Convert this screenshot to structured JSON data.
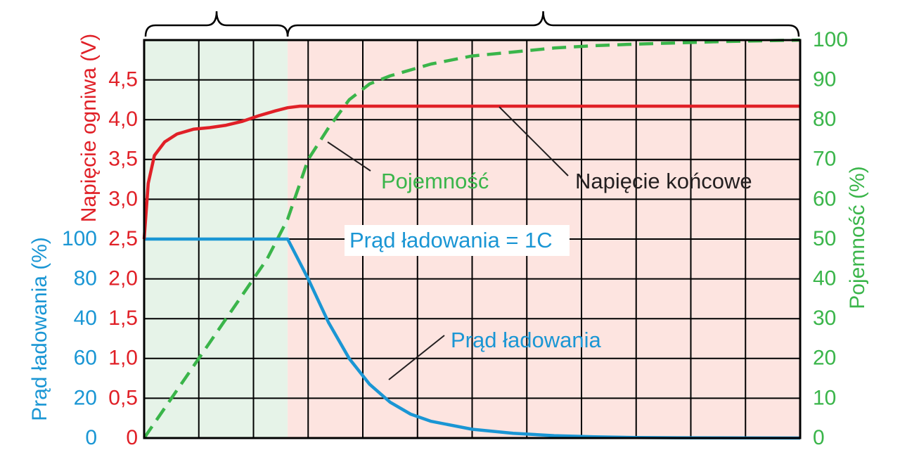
{
  "colors": {
    "voltage": "#e02027",
    "current": "#1a96d4",
    "capacity": "#3ab54a",
    "grid": "#000000",
    "phase1_bg": "#e6f3e8",
    "phase2_bg": "#fde4e0",
    "annotation": "#231f20"
  },
  "chart_data": {
    "type": "line",
    "x_range": [
      0,
      16
    ],
    "x_divisions": 12,
    "phase_boundary_x": 3.5,
    "grid": true,
    "axes": {
      "voltage": {
        "label": "Napięcie ogniwa (V)",
        "range": [
          0,
          5
        ],
        "ticks": [
          "0",
          "0,5",
          "1,0",
          "1,5",
          "2,0",
          "2,5",
          "3,0",
          "3,5",
          "4,0",
          "4,5"
        ]
      },
      "current": {
        "label": "Prąd ładowania (%)",
        "ticks": [
          "0",
          "20",
          "60",
          "40",
          "80",
          "100"
        ]
      },
      "capacity": {
        "label": "Pojemność (%)",
        "range": [
          0,
          100
        ],
        "ticks": [
          "0",
          "10",
          "20",
          "30",
          "40",
          "50",
          "60",
          "70",
          "80",
          "90",
          "100"
        ]
      }
    },
    "series": [
      {
        "name": "Napięcie ogniwa",
        "axis": "voltage",
        "style": "solid",
        "x": [
          0,
          0.1,
          0.25,
          0.5,
          0.8,
          1.2,
          1.6,
          2.0,
          2.4,
          2.8,
          3.2,
          3.5,
          3.8,
          4.0,
          5,
          8,
          12,
          16
        ],
        "y": [
          2.5,
          3.2,
          3.55,
          3.72,
          3.82,
          3.88,
          3.9,
          3.93,
          3.98,
          4.05,
          4.11,
          4.15,
          4.17,
          4.17,
          4.17,
          4.17,
          4.17,
          4.17
        ]
      },
      {
        "name": "Pojemność",
        "axis": "capacity",
        "style": "dashed",
        "x": [
          0,
          1.0,
          2.0,
          3.0,
          3.5,
          4.0,
          4.5,
          5.0,
          5.5,
          6.0,
          7.0,
          8.0,
          9.0,
          10.0,
          11.0,
          12.0,
          13.0,
          14.0,
          15.0,
          16.0
        ],
        "y": [
          0,
          15,
          30,
          45,
          55,
          70,
          78,
          85,
          89,
          91,
          94,
          96,
          97,
          98,
          98.6,
          99,
          99.3,
          99.6,
          99.8,
          100
        ]
      },
      {
        "name": "Prąd ładowania",
        "axis": "capacity",
        "style": "solid",
        "x": [
          0,
          3.5,
          3.7,
          4.0,
          4.5,
          5.0,
          5.5,
          6.0,
          6.5,
          7.0,
          8.0,
          9.0,
          10.0,
          11.0,
          12.0,
          13.0,
          14.0,
          15.0,
          16.0
        ],
        "y": [
          50,
          50,
          46,
          40,
          29,
          20,
          13.5,
          9,
          6,
          4.2,
          2.2,
          1.2,
          0.6,
          0.3,
          0.15,
          0.07,
          0.03,
          0.01,
          0
        ]
      }
    ],
    "annotations": [
      {
        "text": "Pojemność",
        "color_key": "capacity"
      },
      {
        "text": "Napięcie końcowe",
        "color_key": "annotation"
      },
      {
        "text": "Prąd ładowania = 1C",
        "color_key": "current"
      },
      {
        "text": "Prąd ładowania",
        "color_key": "current"
      }
    ]
  }
}
